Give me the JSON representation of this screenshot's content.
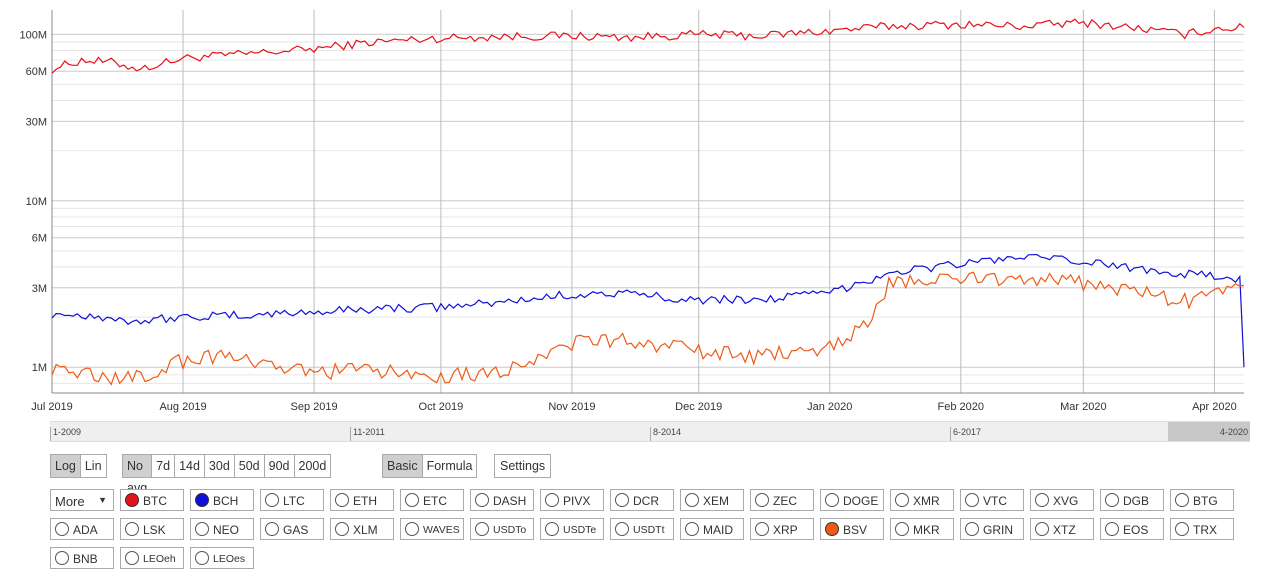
{
  "chart_data": {
    "type": "line",
    "yscale": "log",
    "ylim": [
      700000,
      140000000
    ],
    "yticks": [
      {
        "value": 100000000,
        "label": "100M"
      },
      {
        "value": 60000000,
        "label": "60M"
      },
      {
        "value": 30000000,
        "label": "30M"
      },
      {
        "value": 10000000,
        "label": "10M"
      },
      {
        "value": 6000000,
        "label": "6M"
      },
      {
        "value": 3000000,
        "label": "3M"
      },
      {
        "value": 1000000,
        "label": "1M"
      }
    ],
    "xrange": [
      "2019-07-01",
      "2020-04-08"
    ],
    "xticks": [
      {
        "date": "2019-07-01",
        "label": "Jul 2019"
      },
      {
        "date": "2019-08-01",
        "label": "Aug 2019"
      },
      {
        "date": "2019-09-01",
        "label": "Sep 2019"
      },
      {
        "date": "2019-10-01",
        "label": "Oct 2019"
      },
      {
        "date": "2019-11-01",
        "label": "Nov 2019"
      },
      {
        "date": "2019-12-01",
        "label": "Dec 2019"
      },
      {
        "date": "2020-01-01",
        "label": "Jan 2020"
      },
      {
        "date": "2020-02-01",
        "label": "Feb 2020"
      },
      {
        "date": "2020-03-01",
        "label": "Mar 2020"
      },
      {
        "date": "2020-04-01",
        "label": "Apr 2020"
      }
    ],
    "grid": true,
    "series": [
      {
        "name": "BTC",
        "color": "#e8101a",
        "points": [
          [
            "2019-07-01",
            62000000
          ],
          [
            "2019-07-08",
            70000000
          ],
          [
            "2019-07-15",
            68000000
          ],
          [
            "2019-07-22",
            62000000
          ],
          [
            "2019-08-01",
            72000000
          ],
          [
            "2019-08-15",
            76000000
          ],
          [
            "2019-09-01",
            82000000
          ],
          [
            "2019-09-15",
            90000000
          ],
          [
            "2019-10-01",
            95000000
          ],
          [
            "2019-10-15",
            97000000
          ],
          [
            "2019-11-01",
            98000000
          ],
          [
            "2019-11-15",
            96000000
          ],
          [
            "2019-12-01",
            100000000
          ],
          [
            "2019-12-15",
            98000000
          ],
          [
            "2020-01-01",
            105000000
          ],
          [
            "2020-01-15",
            112000000
          ],
          [
            "2020-02-01",
            115000000
          ],
          [
            "2020-02-15",
            112000000
          ],
          [
            "2020-03-01",
            118000000
          ],
          [
            "2020-03-15",
            108000000
          ],
          [
            "2020-03-25",
            100000000
          ],
          [
            "2020-04-01",
            108000000
          ],
          [
            "2020-04-08",
            110000000
          ]
        ]
      },
      {
        "name": "BCH",
        "color": "#1010d8",
        "points": [
          [
            "2019-07-01",
            2100000
          ],
          [
            "2019-07-10",
            2050000
          ],
          [
            "2019-07-20",
            1900000
          ],
          [
            "2019-08-01",
            2000000
          ],
          [
            "2019-08-15",
            2050000
          ],
          [
            "2019-09-01",
            2150000
          ],
          [
            "2019-09-15",
            2250000
          ],
          [
            "2019-10-01",
            2300000
          ],
          [
            "2019-10-15",
            2450000
          ],
          [
            "2019-11-01",
            2750000
          ],
          [
            "2019-11-15",
            2750000
          ],
          [
            "2019-12-01",
            2550000
          ],
          [
            "2019-12-15",
            2550000
          ],
          [
            "2020-01-01",
            2800000
          ],
          [
            "2020-01-15",
            3700000
          ],
          [
            "2020-02-01",
            4200000
          ],
          [
            "2020-02-15",
            4600000
          ],
          [
            "2020-03-01",
            4300000
          ],
          [
            "2020-03-15",
            3900000
          ],
          [
            "2020-04-01",
            3500000
          ],
          [
            "2020-04-07",
            3400000
          ],
          [
            "2020-04-08",
            1000000
          ]
        ]
      },
      {
        "name": "BSV",
        "color": "#f05a14",
        "points": [
          [
            "2019-07-01",
            1000000
          ],
          [
            "2019-07-10",
            900000
          ],
          [
            "2019-07-20",
            850000
          ],
          [
            "2019-08-01",
            1100000
          ],
          [
            "2019-08-10",
            1200000
          ],
          [
            "2019-08-20",
            1000000
          ],
          [
            "2019-09-01",
            950000
          ],
          [
            "2019-09-15",
            950000
          ],
          [
            "2019-10-01",
            900000
          ],
          [
            "2019-10-15",
            950000
          ],
          [
            "2019-11-01",
            1400000
          ],
          [
            "2019-11-15",
            1450000
          ],
          [
            "2019-12-01",
            1250000
          ],
          [
            "2019-12-15",
            1150000
          ],
          [
            "2020-01-01",
            1350000
          ],
          [
            "2020-01-10",
            1800000
          ],
          [
            "2020-01-15",
            3200000
          ],
          [
            "2020-02-01",
            3400000
          ],
          [
            "2020-02-15",
            3500000
          ],
          [
            "2020-03-01",
            3200000
          ],
          [
            "2020-03-15",
            2800000
          ],
          [
            "2020-03-25",
            2500000
          ],
          [
            "2020-04-01",
            2700000
          ],
          [
            "2020-04-08",
            3100000
          ]
        ]
      }
    ]
  },
  "navigator": {
    "labels": [
      {
        "text": "1-2009",
        "pos": 0.0
      },
      {
        "text": "11-2011",
        "pos": 0.25
      },
      {
        "text": "8-2014",
        "pos": 0.5
      },
      {
        "text": "6-2017",
        "pos": 0.75
      },
      {
        "text": "4-2020",
        "pos": 1.0
      }
    ]
  },
  "controls": {
    "scale": [
      {
        "label": "Log",
        "active": true
      },
      {
        "label": "Lin",
        "active": false
      }
    ],
    "averages": [
      {
        "label": "No avg",
        "active": true
      },
      {
        "label": "7d",
        "active": false
      },
      {
        "label": "14d",
        "active": false
      },
      {
        "label": "30d",
        "active": false
      },
      {
        "label": "50d",
        "active": false
      },
      {
        "label": "90d",
        "active": false
      },
      {
        "label": "200d",
        "active": false
      }
    ],
    "modes": [
      {
        "label": "Basic",
        "active": true
      },
      {
        "label": "Formula",
        "active": false
      }
    ],
    "settings_label": "Settings",
    "more_label": "More"
  },
  "coins": [
    [
      {
        "label": "BTC",
        "selected": true,
        "color": "#e8101a"
      },
      {
        "label": "BCH",
        "selected": true,
        "color": "#1010d8"
      },
      {
        "label": "LTC"
      },
      {
        "label": "ETH"
      },
      {
        "label": "ETC"
      },
      {
        "label": "DASH"
      },
      {
        "label": "PIVX"
      },
      {
        "label": "DCR"
      },
      {
        "label": "XEM"
      },
      {
        "label": "ZEC"
      },
      {
        "label": "DOGE"
      },
      {
        "label": "XMR"
      },
      {
        "label": "VTC"
      },
      {
        "label": "XVG"
      },
      {
        "label": "DGB"
      },
      {
        "label": "BTG"
      }
    ],
    [
      {
        "label": "ADA"
      },
      {
        "label": "LSK"
      },
      {
        "label": "NEO"
      },
      {
        "label": "GAS"
      },
      {
        "label": "XLM"
      },
      {
        "label": "WAVES"
      },
      {
        "label": "USDTo"
      },
      {
        "label": "USDTe"
      },
      {
        "label": "USDTt"
      },
      {
        "label": "MAID"
      },
      {
        "label": "XRP"
      },
      {
        "label": "BSV",
        "selected": true,
        "color": "#f05a14"
      },
      {
        "label": "MKR"
      },
      {
        "label": "GRIN"
      },
      {
        "label": "XTZ"
      },
      {
        "label": "EOS"
      },
      {
        "label": "TRX"
      }
    ],
    [
      {
        "label": "BNB"
      },
      {
        "label": "LEOeh"
      },
      {
        "label": "LEOes"
      }
    ]
  ]
}
